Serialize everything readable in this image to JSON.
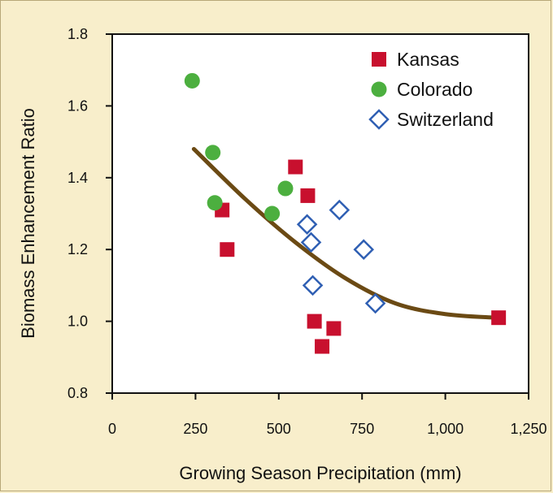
{
  "chart_data": {
    "type": "scatter",
    "xlabel": "Growing Season Precipitation (mm)",
    "ylabel": "Biomass Enhancement Ratio",
    "xlim": [
      0,
      1250
    ],
    "ylim": [
      0.8,
      1.8
    ],
    "x_ticks": [
      "0",
      "250",
      "500",
      "750",
      "1,000",
      "1,250"
    ],
    "y_ticks": [
      "0.8",
      "1.0",
      "1.2",
      "1.4",
      "1.6",
      "1.8"
    ],
    "legend_position": "top-right",
    "grid": false,
    "series": [
      {
        "name": "Kansas",
        "marker": "square",
        "color": "#c8102e",
        "points": [
          {
            "x": 330,
            "y": 1.31
          },
          {
            "x": 345,
            "y": 1.2
          },
          {
            "x": 550,
            "y": 1.43
          },
          {
            "x": 587,
            "y": 1.35
          },
          {
            "x": 607,
            "y": 1.0
          },
          {
            "x": 630,
            "y": 0.93
          },
          {
            "x": 665,
            "y": 0.98
          },
          {
            "x": 1160,
            "y": 1.01
          }
        ]
      },
      {
        "name": "Colorado",
        "marker": "circle",
        "color": "#4caf3f",
        "points": [
          {
            "x": 240,
            "y": 1.67
          },
          {
            "x": 302,
            "y": 1.47
          },
          {
            "x": 308,
            "y": 1.33
          },
          {
            "x": 480,
            "y": 1.3
          },
          {
            "x": 520,
            "y": 1.37
          }
        ]
      },
      {
        "name": "Switzerland",
        "marker": "diamond",
        "color": "#2f5fb3",
        "points": [
          {
            "x": 585,
            "y": 1.27
          },
          {
            "x": 597,
            "y": 1.22
          },
          {
            "x": 602,
            "y": 1.1
          },
          {
            "x": 682,
            "y": 1.31
          },
          {
            "x": 755,
            "y": 1.2
          },
          {
            "x": 790,
            "y": 1.05
          }
        ]
      }
    ],
    "trendline": {
      "color": "#6b4a14",
      "points": [
        {
          "x": 245,
          "y": 1.48
        },
        {
          "x": 400,
          "y": 1.34
        },
        {
          "x": 550,
          "y": 1.22
        },
        {
          "x": 700,
          "y": 1.12
        },
        {
          "x": 850,
          "y": 1.05
        },
        {
          "x": 1000,
          "y": 1.02
        },
        {
          "x": 1150,
          "y": 1.01
        }
      ]
    }
  }
}
